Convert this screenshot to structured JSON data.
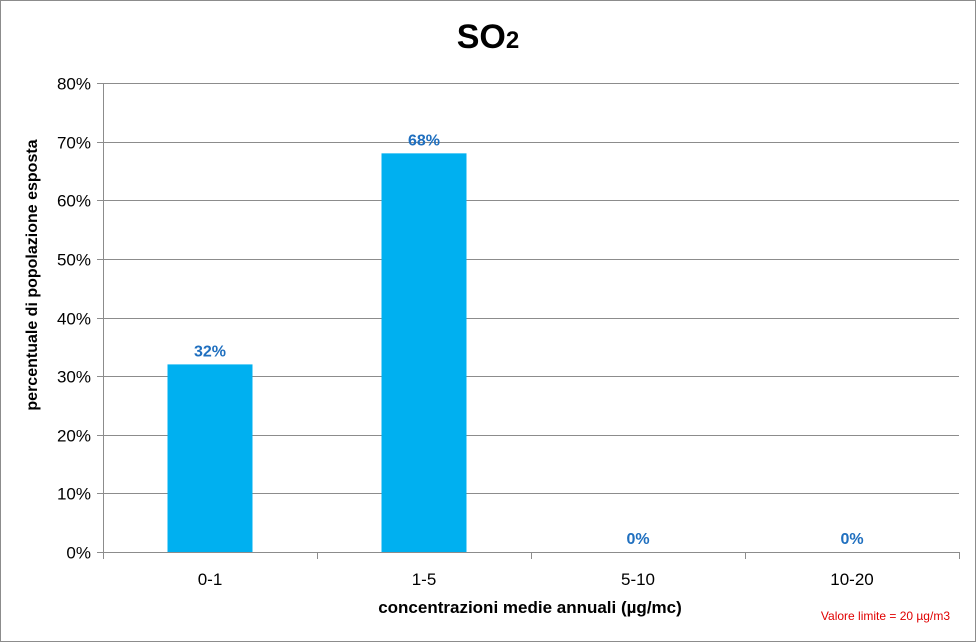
{
  "chart_data": {
    "type": "bar",
    "title_main": "SO",
    "title_sub": "2",
    "categories": [
      "0-1",
      "1-5",
      "5-10",
      "10-20"
    ],
    "values": [
      32,
      68,
      0,
      0
    ],
    "data_labels": [
      "32%",
      "68%",
      "0%",
      "0%"
    ],
    "xlabel": "concentrazioni  medie annuali (µg/mc)",
    "ylabel": "percentuale di popolazione esposta",
    "ylim": [
      0,
      80
    ],
    "yticks": [
      "0%",
      "10%",
      "20%",
      "30%",
      "40%",
      "50%",
      "60%",
      "70%",
      "80%"
    ],
    "grid": true,
    "bar_color": "#00b0f0",
    "label_color": "#1f6fbf",
    "annotation": "Valore limite = 20  µg/m3",
    "annotation_color": "#e00000"
  }
}
